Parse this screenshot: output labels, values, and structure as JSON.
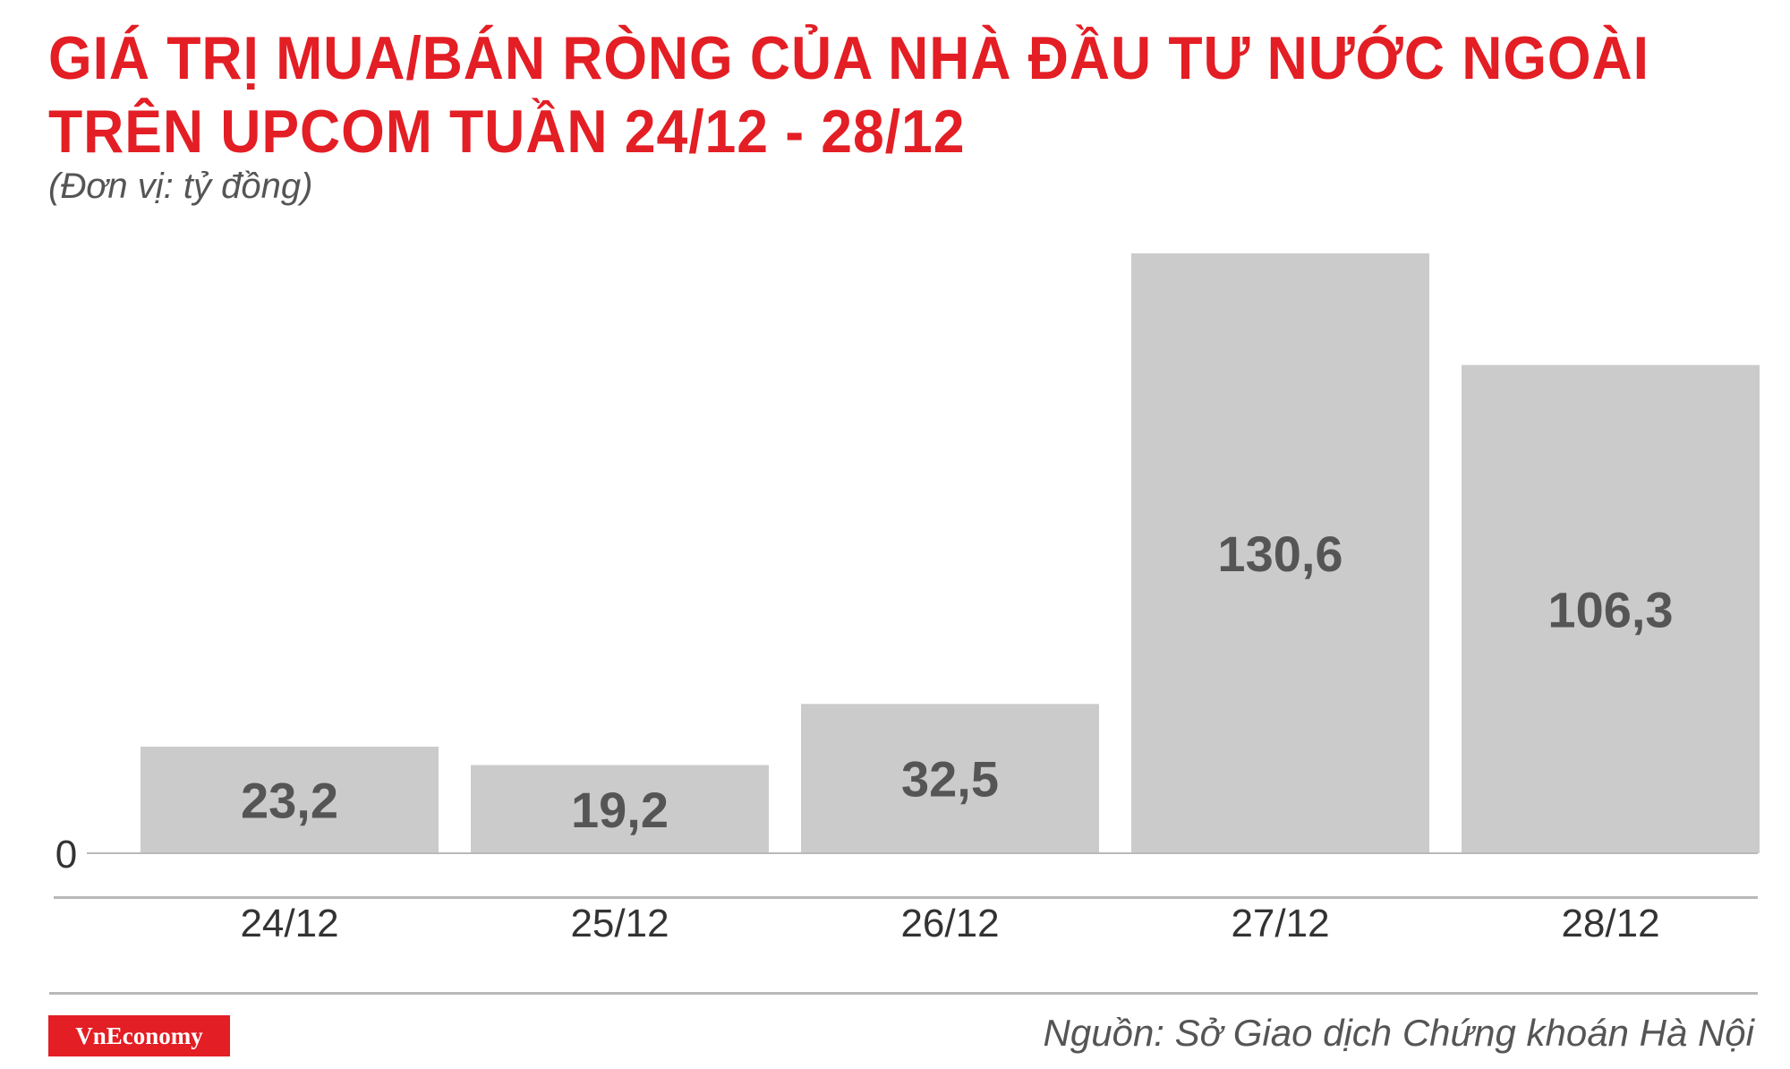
{
  "header": {
    "title_line1": "GIÁ TRỊ MUA/BÁN RÒNG CỦA NHÀ ĐẦU TƯ NƯỚC NGOÀI",
    "title_line2": "TRÊN UPCOM TUẦN 24/12 - 28/12",
    "unit": "(Đơn vị: tỷ đồng)"
  },
  "footer": {
    "brand": "VnEconomy",
    "source": "Nguồn: Sở Giao dịch Chứng khoán Hà Nội"
  },
  "colors": {
    "accent": "#e31e24",
    "bar": "#cccbcc",
    "bar_label": "#555555",
    "axis": "#b9b9b9"
  },
  "chart_data": {
    "type": "bar",
    "categories": [
      "24/12",
      "25/12",
      "26/12",
      "27/12",
      "28/12"
    ],
    "values": [
      23.2,
      19.2,
      32.5,
      130.6,
      106.3
    ],
    "value_labels": [
      "23,2",
      "19,2",
      "32,5",
      "130,6",
      "106,3"
    ],
    "yticks": [
      "0"
    ],
    "ylim": [
      0,
      130.6
    ],
    "grid": false,
    "legend": "none"
  }
}
